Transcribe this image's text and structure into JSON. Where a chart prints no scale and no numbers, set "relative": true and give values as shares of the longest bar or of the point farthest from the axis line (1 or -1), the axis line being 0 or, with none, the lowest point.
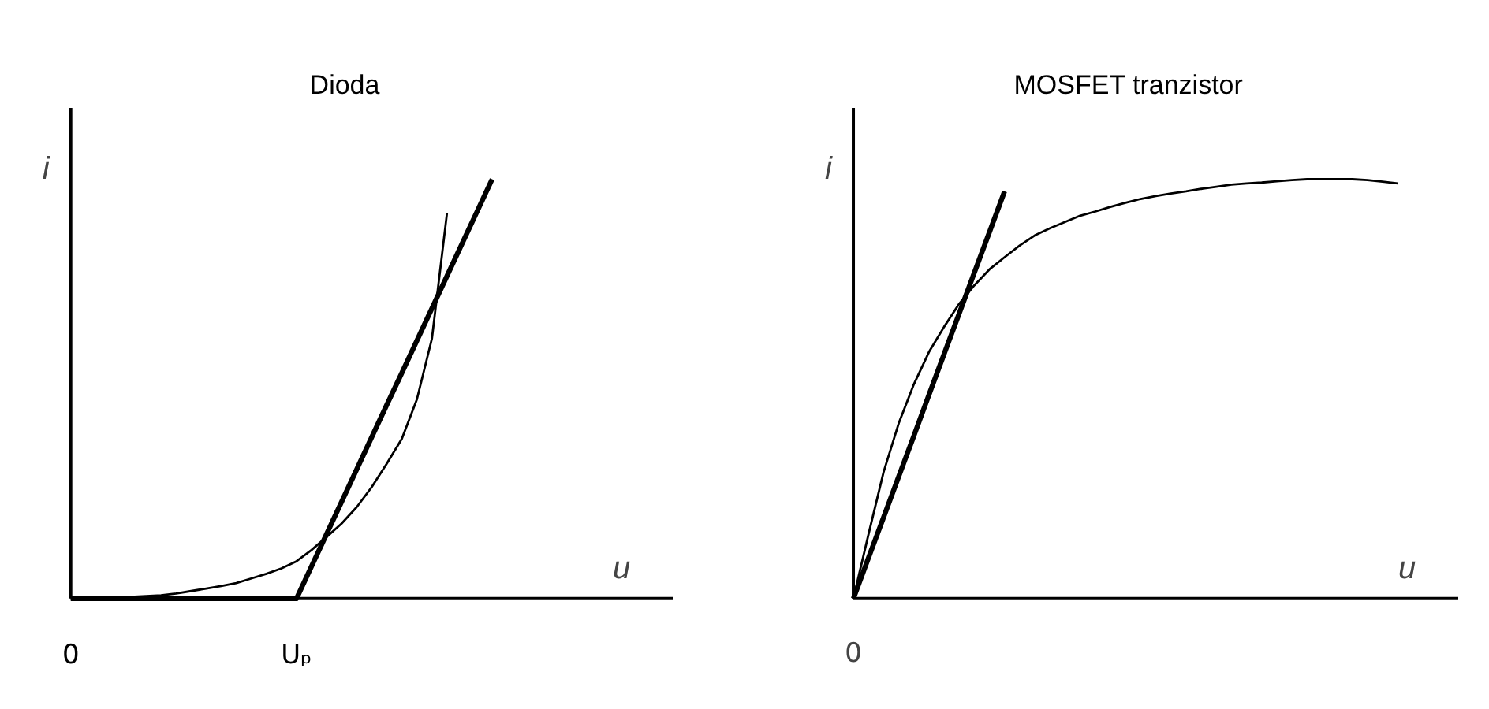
{
  "chart_data": [
    {
      "type": "line",
      "title": "Dioda",
      "xlabel": "u",
      "ylabel": "i",
      "relative": true,
      "categories": [
        "0",
        null,
        null,
        null,
        null,
        null,
        null,
        null,
        null,
        null,
        null,
        null,
        null,
        null,
        null,
        "Uₚ",
        null,
        null,
        null,
        null,
        null,
        null,
        null,
        null,
        null,
        null,
        null,
        null,
        null,
        null,
        null,
        null,
        null,
        null,
        null,
        null,
        null,
        null,
        null,
        null,
        null
      ],
      "series": [
        {
          "color": "#000000",
          "values": [
            0,
            0.0,
            0.001,
            0.002,
            0.004,
            0.006,
            0.008,
            0.012,
            0.018,
            0.024,
            0.03,
            0.037,
            0.048,
            0.059,
            0.072,
            0.089,
            0.116,
            0.147,
            0.179,
            0.218,
            0.266,
            0.322,
            0.381,
            0.475,
            0.62,
            0.919,
            null,
            null,
            null,
            null,
            null,
            null,
            null,
            null,
            null,
            null,
            null,
            null,
            null,
            null,
            null
          ]
        },
        {
          "color": "#000000",
          "values": [
            0,
            0,
            0,
            0,
            0,
            0,
            0,
            0,
            0,
            0,
            0,
            0,
            0,
            0,
            0,
            0,
            0.077,
            0.154,
            0.231,
            0.308,
            0.385,
            0.462,
            0.538,
            0.615,
            0.692,
            0.769,
            0.846,
            0.923,
            1,
            null,
            null,
            null,
            null,
            null,
            null,
            null,
            null,
            null,
            null,
            null,
            null
          ]
        }
      ]
    },
    {
      "type": "line",
      "title": "MOSFET tranzistor",
      "xlabel": "u",
      "ylabel": "i",
      "relative": true,
      "annotations": [
        "0"
      ],
      "categories": [
        null,
        null,
        null,
        null,
        null,
        null,
        null,
        null,
        null,
        null,
        null,
        null,
        null,
        null,
        null,
        null,
        null,
        null,
        null,
        null,
        null,
        null,
        null,
        null,
        null,
        null,
        null,
        null,
        null,
        null,
        null,
        null,
        null,
        null,
        null,
        null,
        null,
        null,
        null,
        null,
        null
      ],
      "series": [
        {
          "color": "#000000",
          "values": [
            0,
            0.153,
            0.302,
            0.418,
            0.511,
            0.588,
            0.648,
            0.703,
            0.747,
            0.785,
            0.814,
            0.842,
            0.866,
            0.883,
            0.898,
            0.913,
            0.923,
            0.934,
            0.944,
            0.953,
            0.96,
            0.966,
            0.971,
            0.977,
            0.982,
            0.987,
            0.99,
            0.992,
            0.995,
            0.998,
            1.0,
            1.0,
            1.0,
            1.0,
            0.998,
            0.994,
            0.99,
            null,
            null,
            null,
            null
          ]
        },
        {
          "color": "#000000",
          "values": [
            0,
            0.097,
            0.194,
            0.291,
            0.388,
            0.486,
            0.583,
            0.68,
            0.777,
            0.874,
            0.971,
            null,
            null,
            null,
            null,
            null,
            null,
            null,
            null,
            null,
            null,
            null,
            null,
            null,
            null,
            null,
            null,
            null,
            null,
            null,
            null,
            null,
            null,
            null,
            null,
            null,
            null,
            null,
            null,
            null,
            null
          ]
        }
      ]
    }
  ]
}
